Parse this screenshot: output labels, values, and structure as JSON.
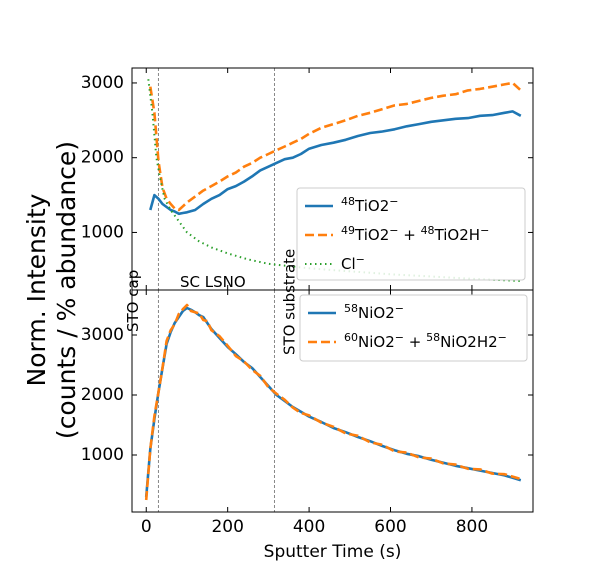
{
  "chart_data": [
    {
      "type": "line",
      "panel": "top",
      "xlim": [
        -35,
        950
      ],
      "ylim": [
        230,
        3200
      ],
      "yticks": [
        1000,
        2000,
        3000
      ],
      "grid": false,
      "legend_placement": "center-right",
      "region_lines": [
        30,
        315
      ],
      "region_labels": [
        "STO cap",
        "SC LSNO",
        "STO substrate"
      ],
      "series": [
        {
          "name": "$^{48}$TiO$_2^{-}$",
          "color": "#1f77b4",
          "style": "solid",
          "x": [
            10,
            20,
            30,
            40,
            50,
            60,
            70,
            80,
            90,
            100,
            120,
            140,
            160,
            180,
            200,
            220,
            240,
            260,
            280,
            300,
            320,
            340,
            360,
            380,
            400,
            430,
            460,
            490,
            520,
            550,
            580,
            610,
            640,
            670,
            700,
            730,
            760,
            790,
            820,
            850,
            880,
            900,
            920
          ],
          "y": [
            1300,
            1500,
            1450,
            1380,
            1340,
            1300,
            1280,
            1250,
            1260,
            1270,
            1300,
            1380,
            1450,
            1500,
            1580,
            1620,
            1680,
            1750,
            1830,
            1880,
            1930,
            1980,
            2000,
            2050,
            2120,
            2170,
            2200,
            2240,
            2290,
            2330,
            2350,
            2380,
            2420,
            2450,
            2480,
            2500,
            2520,
            2530,
            2560,
            2570,
            2600,
            2620,
            2560
          ]
        },
        {
          "name": "$^{49}$TiO$_2^{-}$ + $^{48}$TiO$_2$H$^{-}$",
          "color": "#ff7f0e",
          "style": "dashed",
          "x": [
            10,
            20,
            30,
            40,
            50,
            60,
            70,
            80,
            90,
            100,
            120,
            140,
            160,
            180,
            200,
            220,
            240,
            260,
            280,
            300,
            320,
            340,
            360,
            380,
            400,
            430,
            460,
            490,
            520,
            550,
            580,
            610,
            640,
            670,
            700,
            730,
            760,
            790,
            820,
            850,
            880,
            900,
            920
          ],
          "y": [
            2950,
            2600,
            1950,
            1600,
            1450,
            1380,
            1320,
            1300,
            1350,
            1400,
            1480,
            1560,
            1620,
            1680,
            1750,
            1800,
            1880,
            1930,
            2000,
            2050,
            2100,
            2150,
            2200,
            2250,
            2320,
            2400,
            2450,
            2500,
            2560,
            2600,
            2650,
            2700,
            2720,
            2760,
            2800,
            2830,
            2850,
            2900,
            2920,
            2950,
            2980,
            3000,
            2900
          ]
        },
        {
          "name": "Cl$^{-}$",
          "color": "#2ca02c",
          "style": "dotted",
          "x": [
            5,
            15,
            25,
            35,
            45,
            60,
            80,
            100,
            130,
            160,
            200,
            250,
            300,
            350,
            400,
            450,
            500,
            550,
            600,
            700,
            800,
            920
          ],
          "y": [
            3050,
            2600,
            2000,
            1700,
            1450,
            1300,
            1150,
            1000,
            880,
            800,
            720,
            640,
            580,
            550,
            520,
            500,
            480,
            460,
            440,
            410,
            380,
            350
          ]
        }
      ]
    },
    {
      "type": "line",
      "panel": "bottom",
      "xlabel": "Sputter Time (s)",
      "xlim": [
        -35,
        950
      ],
      "xticks": [
        0,
        200,
        400,
        600,
        800
      ],
      "ylim": [
        50,
        3750
      ],
      "yticks": [
        1000,
        2000,
        3000
      ],
      "grid": false,
      "legend_placement": "top-right",
      "region_lines": [
        30,
        315
      ],
      "series": [
        {
          "name": "$^{58}$NiO$_2^{-}$",
          "color": "#1f77b4",
          "style": "solid",
          "x": [
            0,
            10,
            20,
            30,
            40,
            50,
            60,
            70,
            80,
            90,
            100,
            110,
            120,
            130,
            140,
            150,
            160,
            180,
            200,
            220,
            240,
            260,
            280,
            300,
            320,
            340,
            360,
            380,
            400,
            430,
            460,
            490,
            520,
            550,
            580,
            610,
            640,
            670,
            700,
            730,
            760,
            790,
            820,
            850,
            880,
            900,
            920
          ],
          "y": [
            300,
            1100,
            1600,
            2050,
            2450,
            2850,
            3050,
            3200,
            3300,
            3400,
            3450,
            3420,
            3380,
            3330,
            3300,
            3200,
            3100,
            2950,
            2800,
            2680,
            2550,
            2450,
            2300,
            2150,
            2000,
            1900,
            1800,
            1720,
            1640,
            1550,
            1450,
            1380,
            1300,
            1230,
            1150,
            1080,
            1020,
            980,
            920,
            870,
            820,
            780,
            740,
            700,
            660,
            620,
            580
          ]
        },
        {
          "name": "$^{60}$NiO$_2^{-}$ + $^{58}$NiO$_2$H$_2^{-}$",
          "color": "#ff7f0e",
          "style": "dashed",
          "x": [
            0,
            10,
            20,
            30,
            40,
            50,
            60,
            70,
            80,
            90,
            100,
            110,
            120,
            130,
            140,
            150,
            160,
            180,
            200,
            220,
            240,
            260,
            280,
            300,
            320,
            340,
            360,
            380,
            400,
            430,
            460,
            490,
            520,
            550,
            580,
            610,
            640,
            670,
            700,
            730,
            760,
            790,
            820,
            850,
            880,
            900,
            920
          ],
          "y": [
            250,
            1100,
            1650,
            2050,
            2450,
            2900,
            3080,
            3180,
            3350,
            3430,
            3500,
            3400,
            3380,
            3360,
            3250,
            3230,
            3080,
            2980,
            2820,
            2650,
            2560,
            2420,
            2320,
            2130,
            2020,
            1920,
            1790,
            1700,
            1660,
            1540,
            1470,
            1360,
            1320,
            1210,
            1170,
            1060,
            1040,
            960,
            940,
            860,
            840,
            770,
            760,
            690,
            680,
            640,
            600
          ]
        }
      ]
    }
  ],
  "ylabel_line1": "Norm. Intensity",
  "ylabel_line2": "(counts / % abundance)"
}
